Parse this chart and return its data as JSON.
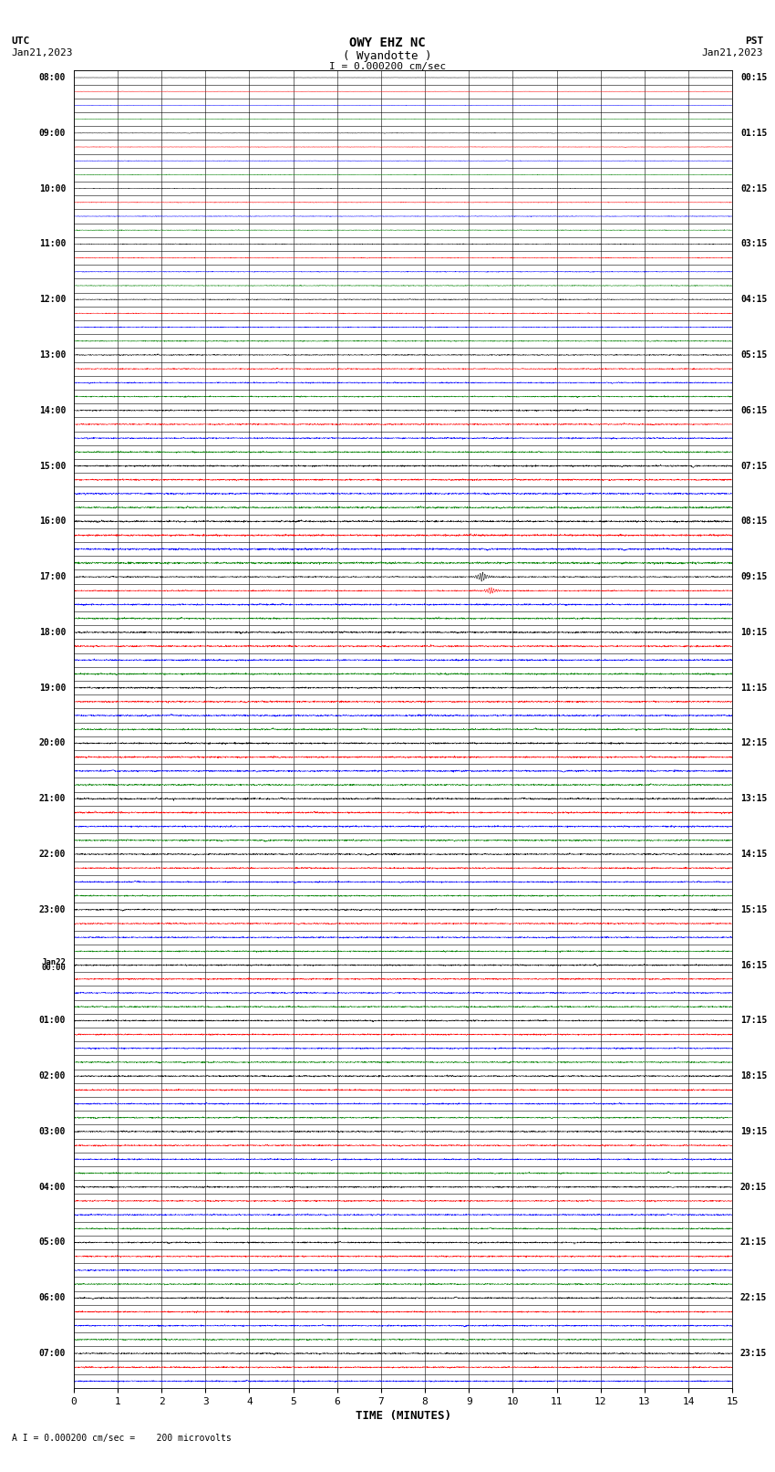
{
  "title_line1": "OWY EHZ NC",
  "title_line2": "( Wyandotte )",
  "scale_text": "I = 0.000200 cm/sec",
  "footer_text": "A I = 0.000200 cm/sec =    200 microvolts",
  "left_label_top": "UTC",
  "left_label_bot": "Jan21,2023",
  "right_label_top": "PST",
  "right_label_bot": "Jan21,2023",
  "xlabel": "TIME (MINUTES)",
  "left_times": [
    "08:00",
    "",
    "",
    "",
    "09:00",
    "",
    "",
    "",
    "10:00",
    "",
    "",
    "",
    "11:00",
    "",
    "",
    "",
    "12:00",
    "",
    "",
    "",
    "13:00",
    "",
    "",
    "",
    "14:00",
    "",
    "",
    "",
    "15:00",
    "",
    "",
    "",
    "16:00",
    "",
    "",
    "",
    "17:00",
    "",
    "",
    "",
    "18:00",
    "",
    "",
    "",
    "19:00",
    "",
    "",
    "",
    "20:00",
    "",
    "",
    "",
    "21:00",
    "",
    "",
    "",
    "22:00",
    "",
    "",
    "",
    "23:00",
    "",
    "",
    "",
    "Jan22\n00:00",
    "",
    "",
    "",
    "01:00",
    "",
    "",
    "",
    "02:00",
    "",
    "",
    "",
    "03:00",
    "",
    "",
    "",
    "04:00",
    "",
    "",
    "",
    "05:00",
    "",
    "",
    "",
    "06:00",
    "",
    "",
    "",
    "07:00",
    "",
    ""
  ],
  "right_times": [
    "00:15",
    "",
    "",
    "",
    "01:15",
    "",
    "",
    "",
    "02:15",
    "",
    "",
    "",
    "03:15",
    "",
    "",
    "",
    "04:15",
    "",
    "",
    "",
    "05:15",
    "",
    "",
    "",
    "06:15",
    "",
    "",
    "",
    "07:15",
    "",
    "",
    "",
    "08:15",
    "",
    "",
    "",
    "09:15",
    "",
    "",
    "",
    "10:15",
    "",
    "",
    "",
    "11:15",
    "",
    "",
    "",
    "12:15",
    "",
    "",
    "",
    "13:15",
    "",
    "",
    "",
    "14:15",
    "",
    "",
    "",
    "15:15",
    "",
    "",
    "",
    "16:15",
    "",
    "",
    "",
    "17:15",
    "",
    "",
    "",
    "18:15",
    "",
    "",
    "",
    "19:15",
    "",
    "",
    "",
    "20:15",
    "",
    "",
    "",
    "21:15",
    "",
    "",
    "",
    "22:15",
    "",
    "",
    "",
    "23:15",
    "",
    ""
  ],
  "num_rows": 95,
  "xmin": 0,
  "xmax": 15,
  "xticks": [
    0,
    1,
    2,
    3,
    4,
    5,
    6,
    7,
    8,
    9,
    10,
    11,
    12,
    13,
    14,
    15
  ],
  "bg_color": "#ffffff",
  "color_cycle": [
    "#000000",
    "#ff0000",
    "#0000ff",
    "#008000"
  ],
  "event_row": 36,
  "event_minute": 9.3,
  "event_amplitude": 0.38,
  "event2_row": 37,
  "event2_minute": 9.5,
  "event2_amplitude": 0.25
}
